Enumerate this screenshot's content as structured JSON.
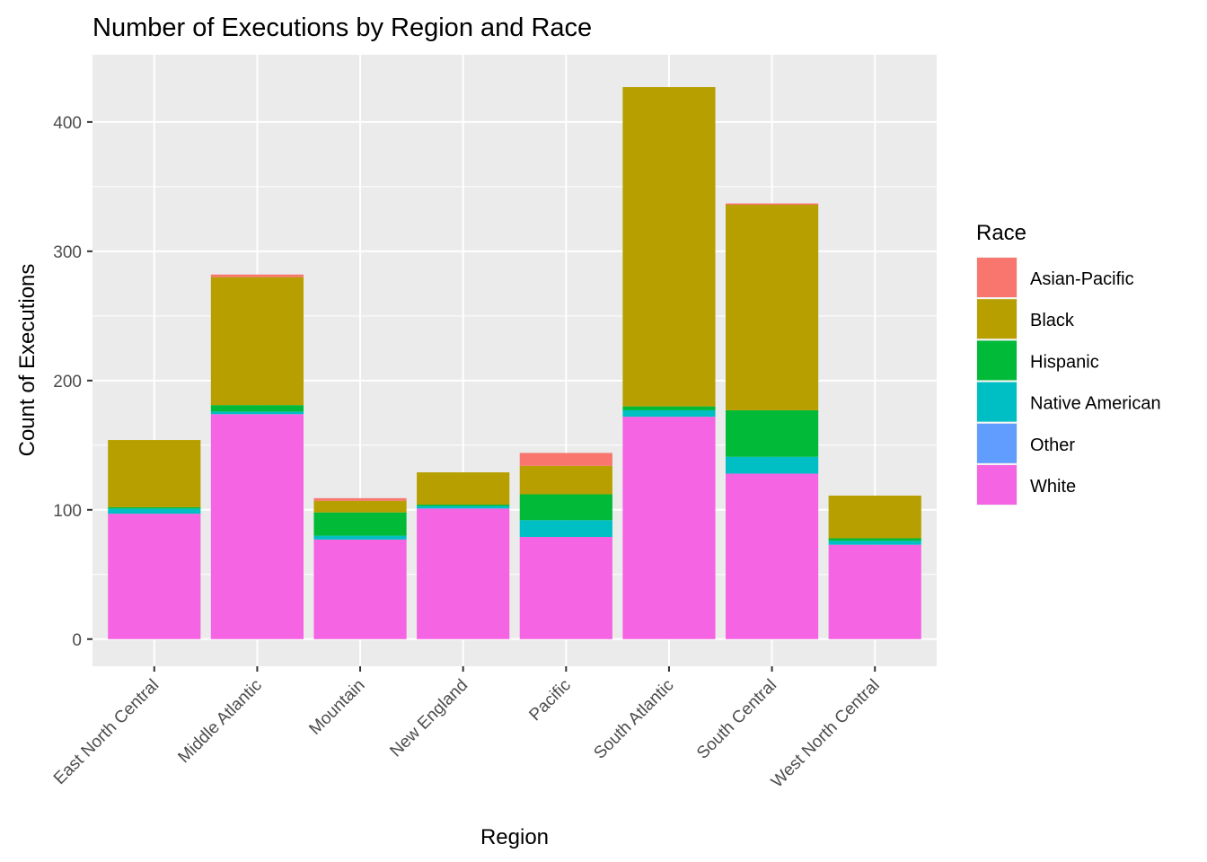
{
  "chart_data": {
    "type": "bar",
    "stacked": true,
    "title": "Number of Executions by Region and Race",
    "xlabel": "Region",
    "ylabel": "Count of Executions",
    "ylim": [
      -21,
      452
    ],
    "yticks": [
      0,
      100,
      200,
      300,
      400
    ],
    "grid": true,
    "legend_position": "right",
    "legend_title": "Race",
    "categories": [
      "East North Central",
      "Middle Atlantic",
      "Mountain",
      "New England",
      "Pacific",
      "South Atlantic",
      "South Central",
      "West North Central"
    ],
    "series": [
      {
        "name": "White",
        "color": "#F564E3",
        "values": [
          97,
          174,
          77,
          101,
          79,
          172,
          128,
          73
        ]
      },
      {
        "name": "Other",
        "color": "#619CFF",
        "values": [
          0,
          0,
          0,
          0,
          0,
          0,
          0,
          0
        ]
      },
      {
        "name": "Native American",
        "color": "#00BFC4",
        "values": [
          4,
          2,
          3,
          2,
          13,
          5,
          13,
          3
        ]
      },
      {
        "name": "Hispanic",
        "color": "#00BA38",
        "values": [
          1,
          5,
          18,
          1,
          20,
          3,
          36,
          2
        ]
      },
      {
        "name": "Black",
        "color": "#B79F00",
        "values": [
          52,
          99,
          9,
          25,
          22,
          247,
          159,
          33
        ]
      },
      {
        "name": "Asian-Pacific",
        "color": "#F8766D",
        "values": [
          0,
          2,
          2,
          0,
          10,
          0,
          1,
          0
        ]
      }
    ],
    "legend_order": [
      "Asian-Pacific",
      "Black",
      "Hispanic",
      "Native American",
      "Other",
      "White"
    ]
  }
}
